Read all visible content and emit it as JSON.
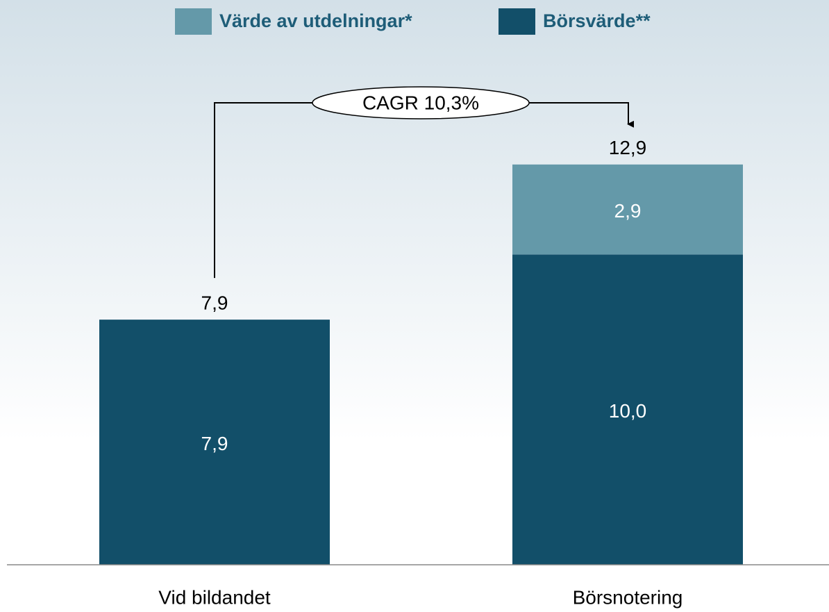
{
  "chart_data": {
    "type": "bar",
    "stacked": true,
    "categories": [
      "Vid bildandet",
      "Börsnotering"
    ],
    "series": [
      {
        "name": "Värde av utdelningar*",
        "color": "#6499a9",
        "values": [
          null,
          2.9
        ],
        "value_labels": [
          null,
          "2,9"
        ]
      },
      {
        "name": "Börsvärde**",
        "color": "#124f69",
        "values": [
          7.9,
          10.0
        ],
        "value_labels": [
          "7,9",
          "10,0"
        ]
      }
    ],
    "totals": [
      7.9,
      12.9
    ],
    "total_labels": [
      "7,9",
      "12,9"
    ],
    "annotation": "CAGR 10,3%",
    "ylim": [
      0,
      15
    ],
    "legend": "top"
  }
}
